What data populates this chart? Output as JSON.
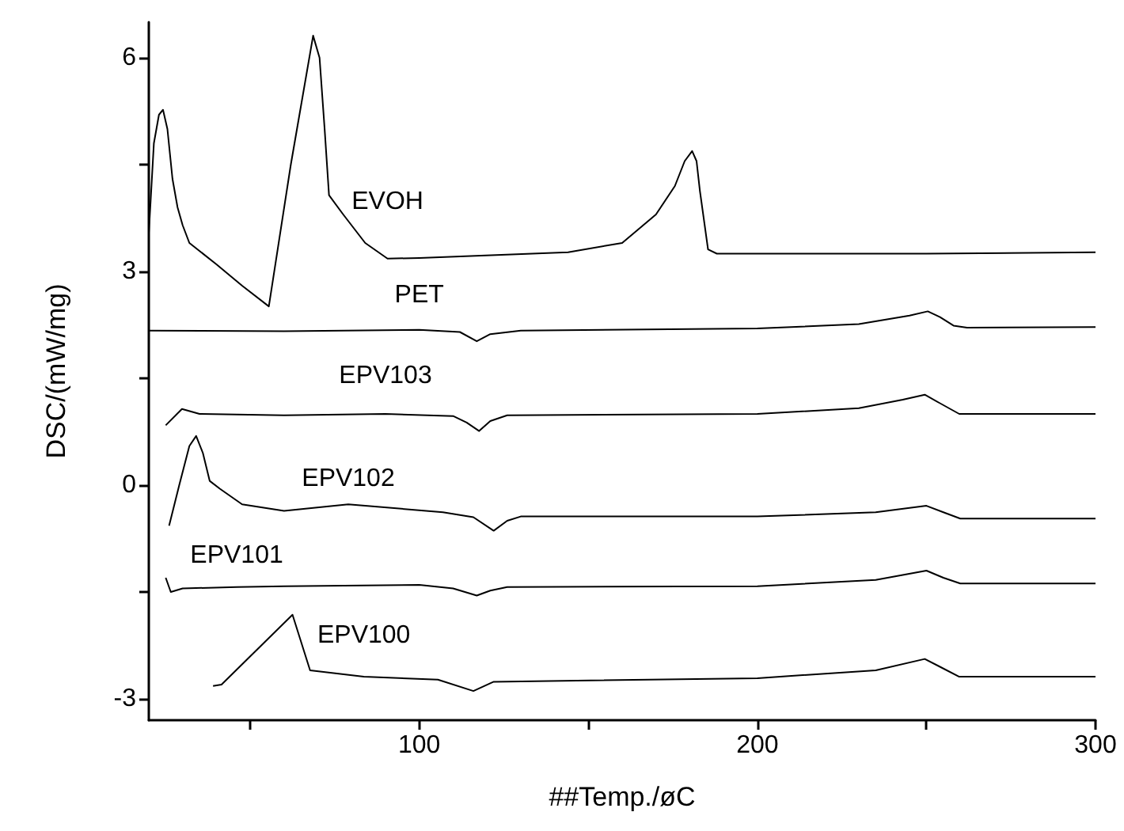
{
  "chart_data": {
    "type": "line",
    "xlabel": "##Temp./øC",
    "ylabel": "DSC/(mW/mg)",
    "xlim": [
      20,
      300
    ],
    "ylim": [
      -3.3,
      6.5
    ],
    "xticks": [
      {
        "value": 50,
        "label": null
      },
      100,
      {
        "value": 150,
        "label": null
      },
      200,
      {
        "value": 250,
        "label": null
      },
      300
    ],
    "yticks": [
      -3,
      {
        "value": -1.5,
        "label": null
      },
      0,
      {
        "value": 1.5,
        "label": null
      },
      3,
      {
        "value": 4.5,
        "label": null
      },
      6
    ],
    "grid": false,
    "legend": false,
    "marker": "none",
    "line_style": "solid",
    "series": [
      {
        "name": "EVOH",
        "color": "#000000",
        "x": [
          20,
          21.5,
          23,
          24.2,
          25.5,
          27,
          28.5,
          30,
          32,
          40,
          47.6,
          55.5,
          62,
          68.6,
          70.5,
          72,
          73.3,
          77.5,
          84,
          90.6,
          100,
          144,
          160,
          170,
          175.6,
          178.5,
          180.7,
          182,
          183,
          185.4,
          188,
          250,
          300
        ],
        "values": [
          3.54,
          4.8,
          5.2,
          5.27,
          5.0,
          4.3,
          3.9,
          3.65,
          3.4,
          3.1,
          2.8,
          2.51,
          4.5,
          6.31,
          6.0,
          5.0,
          4.07,
          3.8,
          3.4,
          3.18,
          3.19,
          3.27,
          3.4,
          3.8,
          4.2,
          4.55,
          4.69,
          4.55,
          4.13,
          3.31,
          3.25,
          3.25,
          3.27
        ]
      },
      {
        "name": "PET",
        "color": "#000000",
        "x": [
          20,
          60,
          100,
          112,
          117,
          121,
          130,
          200,
          230,
          245,
          250.4,
          254,
          258,
          262,
          300
        ],
        "values": [
          2.17,
          2.16,
          2.18,
          2.15,
          2.02,
          2.12,
          2.17,
          2.2,
          2.26,
          2.38,
          2.44,
          2.36,
          2.24,
          2.21,
          2.22
        ]
      },
      {
        "name": "EPV103",
        "color": "#000000",
        "x": [
          25,
          29.8,
          35,
          60,
          90,
          110,
          114,
          117.7,
          121,
          126,
          200,
          230,
          243,
          249.5,
          254,
          259.7,
          300
        ],
        "values": [
          0.84,
          1.07,
          1.0,
          0.98,
          1.0,
          0.97,
          0.88,
          0.76,
          0.9,
          0.98,
          1.0,
          1.08,
          1.2,
          1.27,
          1.15,
          1.0,
          1.0
        ]
      },
      {
        "name": "EPV102",
        "color": "#000000",
        "x": [
          26,
          29,
          32,
          34,
          36,
          38,
          41,
          47.6,
          60,
          79,
          107,
          116,
          122,
          126,
          130,
          200,
          235,
          250,
          255,
          260,
          300
        ],
        "values": [
          -0.57,
          0.0,
          0.55,
          0.69,
          0.45,
          0.06,
          -0.05,
          -0.27,
          -0.36,
          -0.27,
          -0.38,
          -0.45,
          -0.64,
          -0.5,
          -0.44,
          -0.44,
          -0.38,
          -0.29,
          -0.38,
          -0.47,
          -0.47
        ]
      },
      {
        "name": "EPV101",
        "color": "#000000",
        "x": [
          25,
          26.5,
          30,
          46,
          60,
          100,
          110,
          117,
          121,
          126,
          200,
          235,
          250,
          255,
          260,
          300
        ],
        "values": [
          -1.3,
          -1.5,
          -1.45,
          -1.43,
          -1.42,
          -1.4,
          -1.45,
          -1.55,
          -1.48,
          -1.43,
          -1.42,
          -1.33,
          -1.2,
          -1.3,
          -1.38,
          -1.38
        ]
      },
      {
        "name": "EPV100",
        "color": "#000000",
        "x": [
          39,
          41.5,
          62.5,
          67.7,
          83.6,
          105.5,
          116,
          122,
          200,
          235,
          249.5,
          254,
          259.7,
          300
        ],
        "values": [
          -2.82,
          -2.8,
          -1.82,
          -2.6,
          -2.69,
          -2.73,
          -2.89,
          -2.76,
          -2.71,
          -2.6,
          -2.44,
          -2.55,
          -2.69,
          -2.69
        ]
      }
    ]
  }
}
